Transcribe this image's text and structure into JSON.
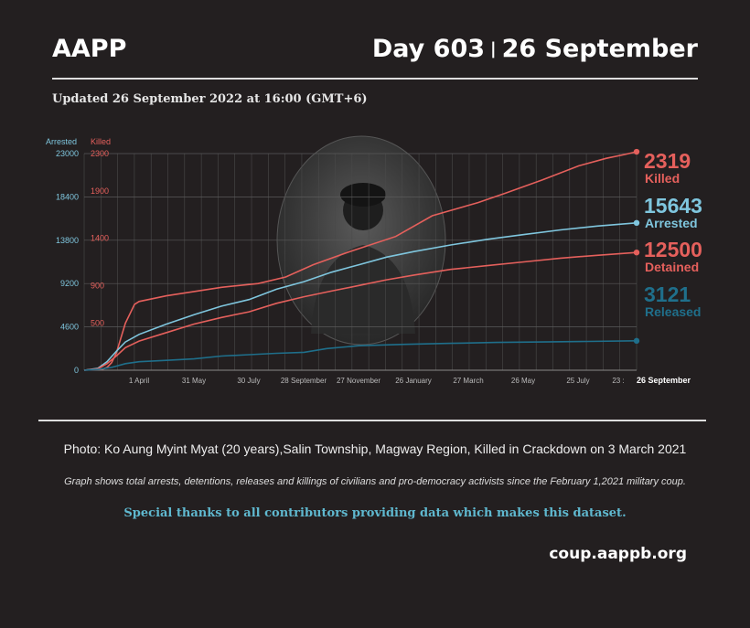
{
  "header": {
    "org": "AAPP",
    "day": "Day 603",
    "date": "26 September",
    "updated": "Updated 26 September 2022 at 16:00 (GMT+6)"
  },
  "chart_data": {
    "type": "line",
    "title": "",
    "grid": true,
    "axes": {
      "left_arrested": {
        "label": "Arrested",
        "ticks": [
          0,
          4600,
          9200,
          13800,
          18400,
          23000
        ],
        "range": [
          0,
          23000
        ],
        "color": "#7fc6de"
      },
      "left_killed": {
        "label": "Killed",
        "ticks": [
          500,
          900,
          1400,
          1900,
          2300
        ],
        "range": [
          0,
          2300
        ],
        "color": "#e5605c"
      }
    },
    "x_ticks": [
      "1 April",
      "31 May",
      "30 July",
      "28 September",
      "27 November",
      "26 January",
      "27 March",
      "26 May",
      "25 July",
      "23 :",
      "26 September"
    ],
    "x_range_days": [
      0,
      603
    ],
    "series": [
      {
        "name": "Killed",
        "value_label": "2319",
        "axis": "left_killed",
        "color": "#e5605c",
        "points": [
          [
            0,
            0
          ],
          [
            20,
            10
          ],
          [
            25,
            30
          ],
          [
            30,
            80
          ],
          [
            35,
            180
          ],
          [
            45,
            500
          ],
          [
            55,
            700
          ],
          [
            60,
            730
          ],
          [
            90,
            790
          ],
          [
            150,
            880
          ],
          [
            190,
            920
          ],
          [
            220,
            990
          ],
          [
            250,
            1120
          ],
          [
            290,
            1260
          ],
          [
            340,
            1420
          ],
          [
            380,
            1640
          ],
          [
            430,
            1780
          ],
          [
            460,
            1880
          ],
          [
            500,
            2020
          ],
          [
            540,
            2170
          ],
          [
            570,
            2250
          ],
          [
            590,
            2290
          ],
          [
            603,
            2319
          ]
        ]
      },
      {
        "name": "Arrested",
        "value_label": "15643",
        "axis": "left_arrested",
        "color": "#7fc6de",
        "points": [
          [
            0,
            0
          ],
          [
            15,
            200
          ],
          [
            25,
            900
          ],
          [
            35,
            2000
          ],
          [
            45,
            3000
          ],
          [
            60,
            3800
          ],
          [
            90,
            4900
          ],
          [
            120,
            5900
          ],
          [
            150,
            6800
          ],
          [
            180,
            7500
          ],
          [
            210,
            8600
          ],
          [
            240,
            9400
          ],
          [
            270,
            10400
          ],
          [
            300,
            11200
          ],
          [
            330,
            12000
          ],
          [
            360,
            12600
          ],
          [
            400,
            13300
          ],
          [
            440,
            13900
          ],
          [
            480,
            14400
          ],
          [
            520,
            14900
          ],
          [
            560,
            15300
          ],
          [
            603,
            15643
          ]
        ]
      },
      {
        "name": "Detained",
        "value_label": "12500",
        "axis": "left_arrested",
        "color": "#e5605c",
        "points": [
          [
            0,
            0
          ],
          [
            15,
            150
          ],
          [
            25,
            700
          ],
          [
            35,
            1500
          ],
          [
            45,
            2400
          ],
          [
            60,
            3100
          ],
          [
            90,
            4000
          ],
          [
            120,
            4900
          ],
          [
            150,
            5600
          ],
          [
            180,
            6200
          ],
          [
            210,
            7100
          ],
          [
            240,
            7800
          ],
          [
            270,
            8400
          ],
          [
            300,
            9000
          ],
          [
            330,
            9600
          ],
          [
            360,
            10100
          ],
          [
            400,
            10700
          ],
          [
            440,
            11100
          ],
          [
            480,
            11500
          ],
          [
            520,
            11900
          ],
          [
            560,
            12200
          ],
          [
            603,
            12500
          ]
        ]
      },
      {
        "name": "Released",
        "value_label": "3121",
        "axis": "left_arrested",
        "color": "#1f6f8b",
        "points": [
          [
            0,
            0
          ],
          [
            15,
            80
          ],
          [
            30,
            300
          ],
          [
            45,
            700
          ],
          [
            60,
            900
          ],
          [
            90,
            1050
          ],
          [
            120,
            1200
          ],
          [
            150,
            1500
          ],
          [
            180,
            1650
          ],
          [
            210,
            1800
          ],
          [
            240,
            1900
          ],
          [
            265,
            2300
          ],
          [
            300,
            2600
          ],
          [
            350,
            2750
          ],
          [
            400,
            2850
          ],
          [
            450,
            2950
          ],
          [
            500,
            3000
          ],
          [
            550,
            3060
          ],
          [
            603,
            3121
          ]
        ]
      }
    ]
  },
  "footer": {
    "photo_credit": "Photo: Ko Aung Myint Myat (20 years),Salin Township, Magway Region, Killed in Crackdown on 3 March 2021",
    "note": "Graph shows total arrests, detentions, releases and killings of civilians and pro-democracy activists since the February 1,2021 military coup.",
    "thanks": "Special thanks to all contributors providing data which makes this dataset.",
    "site": "coup.aappb.org"
  }
}
